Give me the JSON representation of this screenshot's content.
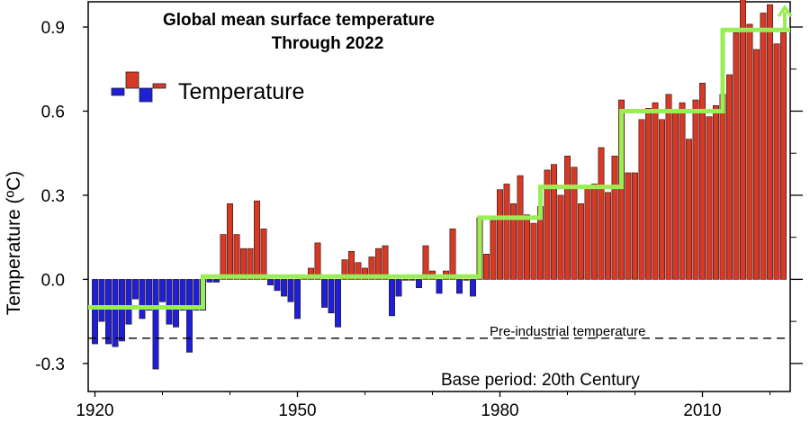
{
  "chart_data": {
    "type": "bar",
    "title_line1": "Global mean surface temperature",
    "title_line2": "Through 2022",
    "ylabel": "Temperature (ºC)",
    "xlabel": "",
    "xlim": [
      1919,
      2023
    ],
    "ylim": [
      -0.4,
      0.99
    ],
    "x_ticks": [
      1920,
      1950,
      1980,
      2010
    ],
    "y_ticks": [
      -0.3,
      0.0,
      0.3,
      0.6,
      0.9
    ],
    "y_tick_labels": [
      "-0.3",
      "0.0",
      "0.3",
      "0.6",
      "0.9"
    ],
    "grid": false,
    "legend": {
      "label": "Temperature",
      "position": "top-left"
    },
    "positive_color": "#d63a26",
    "negative_color": "#1f1fd6",
    "step_color": "#99ee55",
    "years": [
      1920,
      1921,
      1922,
      1923,
      1924,
      1925,
      1926,
      1927,
      1928,
      1929,
      1930,
      1931,
      1932,
      1933,
      1934,
      1935,
      1936,
      1937,
      1938,
      1939,
      1940,
      1941,
      1942,
      1943,
      1944,
      1945,
      1946,
      1947,
      1948,
      1949,
      1950,
      1951,
      1952,
      1953,
      1954,
      1955,
      1956,
      1957,
      1958,
      1959,
      1960,
      1961,
      1962,
      1963,
      1964,
      1965,
      1966,
      1967,
      1968,
      1969,
      1970,
      1971,
      1972,
      1973,
      1974,
      1975,
      1976,
      1977,
      1978,
      1979,
      1980,
      1981,
      1982,
      1983,
      1984,
      1985,
      1986,
      1987,
      1988,
      1989,
      1990,
      1991,
      1992,
      1993,
      1994,
      1995,
      1996,
      1997,
      1998,
      1999,
      2000,
      2001,
      2002,
      2003,
      2004,
      2005,
      2006,
      2007,
      2008,
      2009,
      2010,
      2011,
      2012,
      2013,
      2014,
      2015,
      2016,
      2017,
      2018,
      2019,
      2020,
      2021,
      2022
    ],
    "values": [
      -0.23,
      -0.15,
      -0.23,
      -0.24,
      -0.22,
      -0.16,
      -0.07,
      -0.14,
      -0.11,
      -0.32,
      -0.08,
      -0.16,
      -0.17,
      -0.11,
      -0.26,
      -0.11,
      -0.11,
      -0.01,
      -0.01,
      0.16,
      0.27,
      0.16,
      0.11,
      0.11,
      0.28,
      0.18,
      -0.02,
      -0.04,
      -0.06,
      -0.08,
      -0.14,
      0.01,
      0.04,
      0.13,
      -0.1,
      -0.12,
      -0.17,
      0.07,
      0.1,
      0.06,
      0.04,
      0.08,
      0.11,
      0.12,
      -0.13,
      -0.06,
      0.0,
      0.0,
      -0.03,
      0.12,
      0.03,
      -0.05,
      0.03,
      0.18,
      -0.05,
      0.0,
      -0.06,
      0.22,
      0.09,
      0.21,
      0.32,
      0.34,
      0.27,
      0.37,
      0.23,
      0.2,
      0.26,
      0.39,
      0.41,
      0.3,
      0.44,
      0.4,
      0.27,
      0.33,
      0.34,
      0.47,
      0.31,
      0.44,
      0.64,
      0.38,
      0.38,
      0.57,
      0.61,
      0.63,
      0.57,
      0.66,
      0.6,
      0.63,
      0.5,
      0.64,
      0.7,
      0.58,
      0.62,
      0.66,
      0.73,
      0.88,
      1.02,
      0.91,
      0.82,
      0.95,
      0.98,
      0.84,
      0.88
    ],
    "step_segments": [
      {
        "start": 1919,
        "end": 1936,
        "value": -0.1
      },
      {
        "start": 1936,
        "end": 1977,
        "value": 0.01
      },
      {
        "start": 1977,
        "end": 1986,
        "value": 0.22
      },
      {
        "start": 1986,
        "end": 1998,
        "value": 0.33
      },
      {
        "start": 1998,
        "end": 2013,
        "value": 0.6
      },
      {
        "start": 2013,
        "end": 2023,
        "value": 0.89
      }
    ],
    "preindustrial_level": -0.21,
    "annotations": {
      "preindustrial": "Pre-industrial temperature",
      "base_period": "Base period: 20th Century"
    }
  }
}
